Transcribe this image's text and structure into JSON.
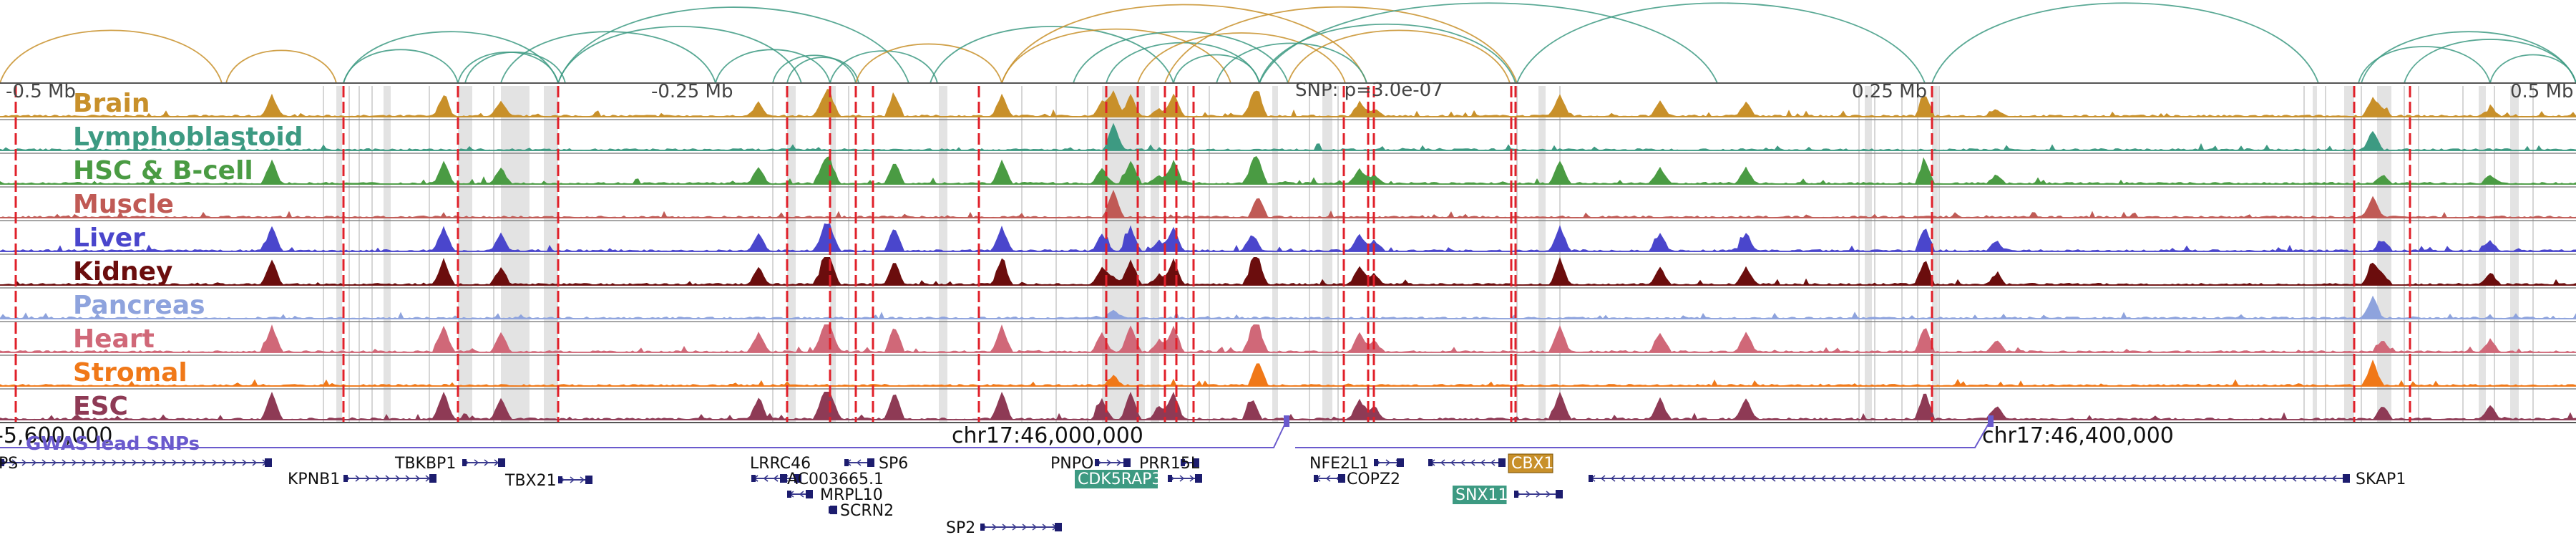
{
  "scale": {
    "left": "-0.5 Mb",
    "mid_left": "-0.25 Mb",
    "snp": "SNP: p=3.0e-07",
    "mid_right": "0.25 Mb",
    "right": "0.5 Mb"
  },
  "tissues": [
    {
      "name": "Brain",
      "color": "#c8902a"
    },
    {
      "name": "Lymphoblastoid",
      "color": "#3d9a82"
    },
    {
      "name": "HSC & B-cell",
      "color": "#4a9b43"
    },
    {
      "name": "Muscle",
      "color": "#c05a55"
    },
    {
      "name": "Liver",
      "color": "#4a46cc"
    },
    {
      "name": "Kidney",
      "color": "#6b0d0d"
    },
    {
      "name": "Pancreas",
      "color": "#8ea3dd"
    },
    {
      "name": "Heart",
      "color": "#d06878"
    },
    {
      "name": "Stromal",
      "color": "#f07818"
    },
    {
      "name": "ESC",
      "color": "#8e3a55"
    }
  ],
  "coords": {
    "left": "-5,600,000",
    "mid": "chr17:46,000,000",
    "right": "chr17:46,400,000"
  },
  "gwas": {
    "label": "GWAS lead SNPs",
    "color": "#6a5acd"
  },
  "genes": [
    {
      "name": "PS",
      "style": "plain"
    },
    {
      "name": "KPNB1",
      "style": "plain"
    },
    {
      "name": "TBKBP1",
      "style": "plain"
    },
    {
      "name": "TBX21",
      "style": "plain"
    },
    {
      "name": "LRRC46",
      "style": "plain"
    },
    {
      "name": "SP6",
      "style": "plain"
    },
    {
      "name": "AC003665.1",
      "style": "plain"
    },
    {
      "name": "MRPL10",
      "style": "plain"
    },
    {
      "name": "SCRN2",
      "style": "plain"
    },
    {
      "name": "SP2",
      "style": "plain"
    },
    {
      "name": "PNPO",
      "style": "plain"
    },
    {
      "name": "PRR15L",
      "style": "plain"
    },
    {
      "name": "CDK5RAP3",
      "style": "teal"
    },
    {
      "name": "NFE2L1",
      "style": "plain"
    },
    {
      "name": "COPZ2",
      "style": "plain"
    },
    {
      "name": "CBX1",
      "style": "gold"
    },
    {
      "name": "SNX11",
      "style": "teal"
    },
    {
      "name": "SKAP1",
      "style": "plain"
    }
  ],
  "colors": {
    "teal_arc": "#3d9a82",
    "gold_arc": "#c8902a",
    "red_line": "#e0202a",
    "grey_band": "#d9d9d9"
  }
}
